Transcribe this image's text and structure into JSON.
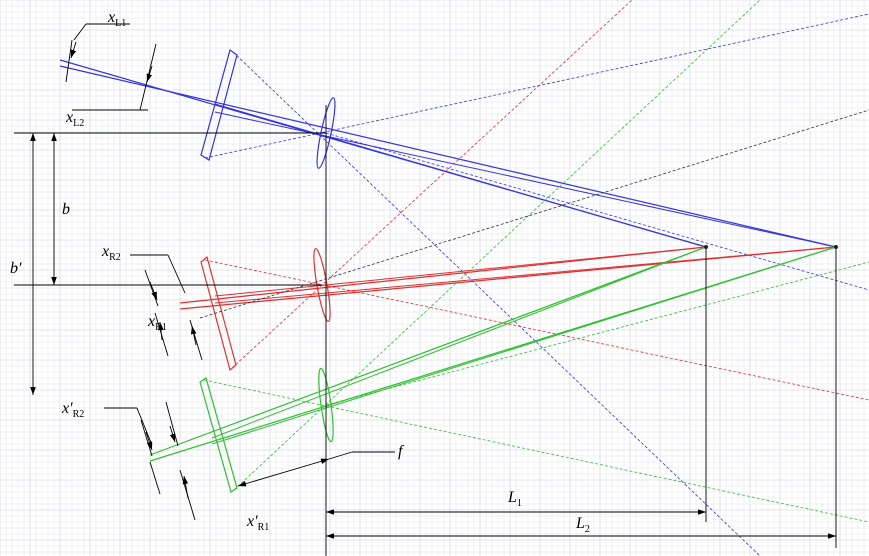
{
  "colors": {
    "grid_minor": "#e3e6ee",
    "grid_major": "#c9ceda",
    "blue": "#3434e0",
    "red": "#e23030",
    "green": "#2fbf2f",
    "black": "#000000",
    "dark": "#303030"
  },
  "labels": {
    "xL1": {
      "main": "x",
      "sub": "L1"
    },
    "xL2": {
      "main": "x",
      "sub": "L2"
    },
    "xR2": {
      "main": "x",
      "sub": "R2"
    },
    "xR1": {
      "main": "x",
      "sub": "R1"
    },
    "xpR2": {
      "main": "x′",
      "sub": "R2"
    },
    "xpR1": {
      "main": "x′",
      "sub": "R1"
    },
    "b": {
      "main": "b"
    },
    "bp": {
      "main": "b′"
    },
    "f": {
      "main": "f"
    },
    "L1": {
      "main": "L",
      "sub": "1"
    },
    "L2": {
      "main": "L",
      "sub": "2"
    }
  }
}
